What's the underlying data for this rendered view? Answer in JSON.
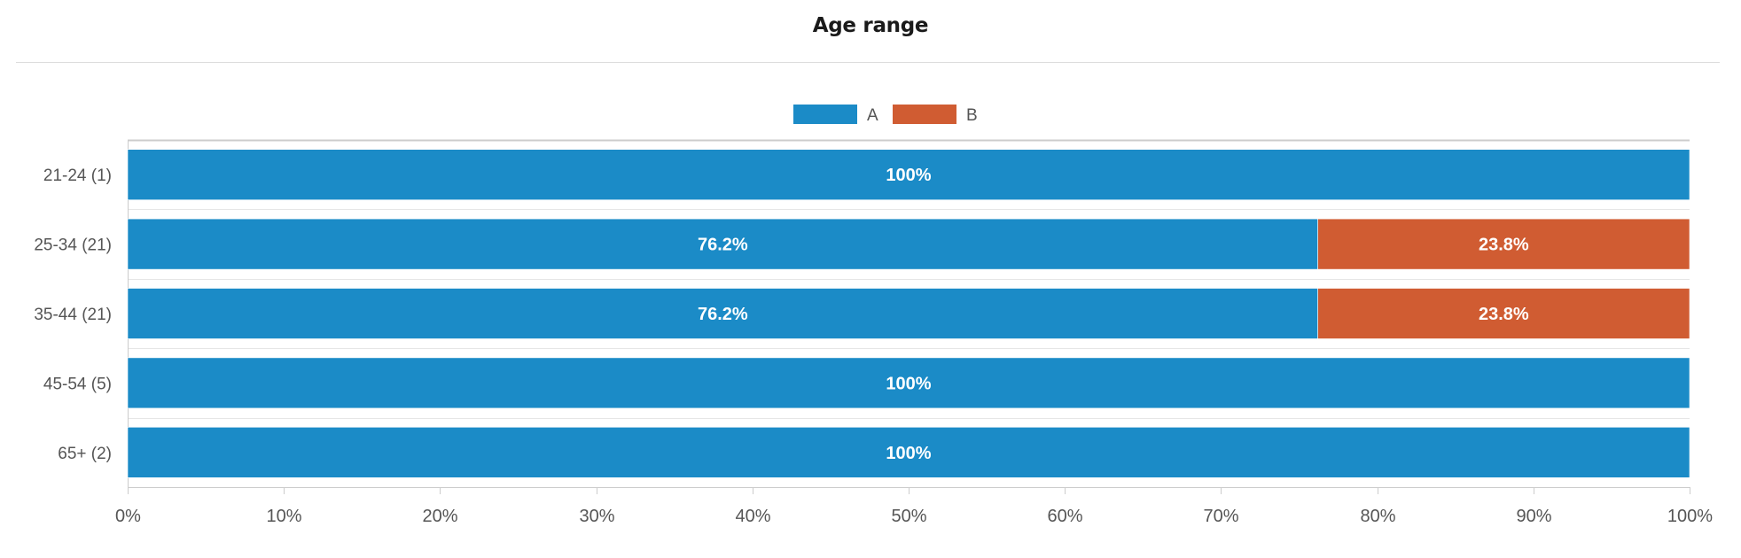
{
  "colors": {
    "A": "#1b8bc7",
    "B": "#d05c32",
    "grid": "#e6e6e6",
    "axis": "#cccccc",
    "text": "#555555",
    "title": "#1a1a1a"
  },
  "chart_data": {
    "type": "bar",
    "orientation": "horizontal",
    "stacked": true,
    "title": "Age range",
    "xlabel": "",
    "ylabel": "",
    "categories": [
      "21-24 (1)",
      "25-34 (21)",
      "35-44 (21)",
      "45-54 (5)",
      "65+ (2)"
    ],
    "series": [
      {
        "name": "A",
        "color": "#1b8bc7",
        "values": [
          100,
          76.2,
          76.2,
          100,
          100
        ],
        "labels": [
          "100%",
          "76.2%",
          "76.2%",
          "100%",
          "100%"
        ]
      },
      {
        "name": "B",
        "color": "#d05c32",
        "values": [
          0,
          23.8,
          23.8,
          0,
          0
        ],
        "labels": [
          "",
          "23.8%",
          "23.8%",
          "",
          ""
        ]
      }
    ],
    "xlim": [
      0,
      100
    ],
    "xticks": [
      "0%",
      "10%",
      "20%",
      "30%",
      "40%",
      "50%",
      "60%",
      "70%",
      "80%",
      "90%",
      "100%"
    ],
    "legend": "top-center",
    "grid": false
  }
}
